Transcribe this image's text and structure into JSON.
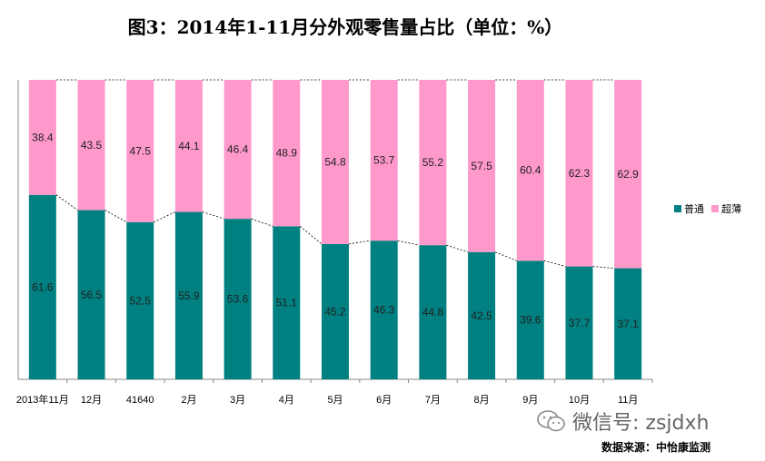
{
  "chart_data": {
    "type": "bar",
    "stacked": true,
    "title": "图3：2014年1-11月分外观零售量占比（单位：%）",
    "categories": [
      "2013年11月",
      "12月",
      "41640",
      "2月",
      "3月",
      "4月",
      "5月",
      "6月",
      "7月",
      "8月",
      "9月",
      "10月",
      "11月"
    ],
    "series": [
      {
        "name": "普通",
        "color": "#008080",
        "values": [
          61.6,
          56.5,
          52.5,
          55.9,
          53.6,
          51.1,
          45.2,
          46.3,
          44.8,
          42.5,
          39.6,
          37.7,
          37.1
        ]
      },
      {
        "name": "超薄",
        "color": "#FF99CC",
        "values": [
          38.4,
          43.5,
          47.5,
          44.1,
          46.4,
          48.9,
          54.8,
          53.7,
          55.2,
          57.5,
          60.4,
          62.3,
          62.9
        ]
      }
    ],
    "ylim": [
      0,
      100
    ],
    "legend_position": "right",
    "series_lines": true
  },
  "watermark": "微信号: zsjdxh",
  "source": "数据来源：中怡康监测",
  "colors": {
    "teal": "#008080",
    "pink": "#FF99CC"
  }
}
